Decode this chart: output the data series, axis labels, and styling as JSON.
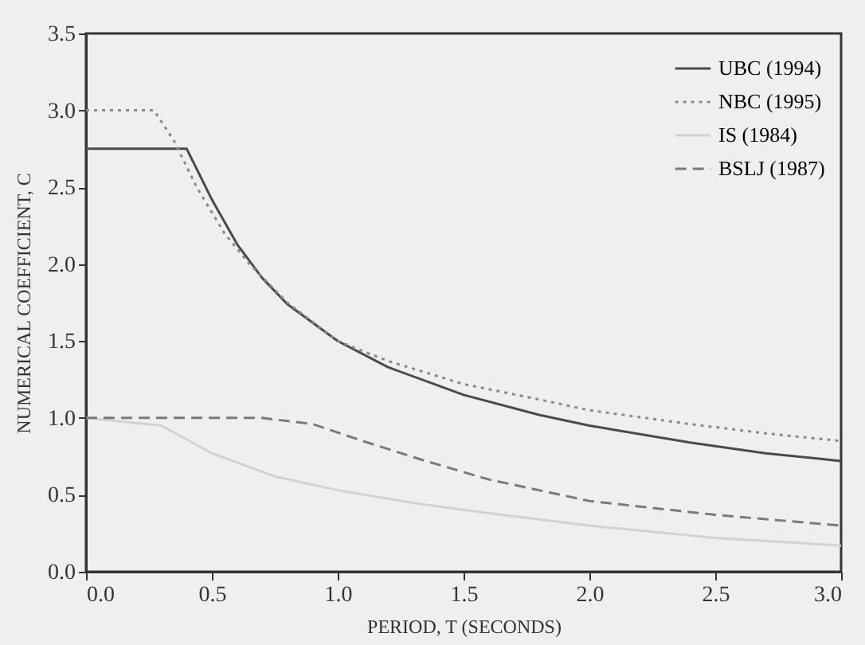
{
  "chart_data": {
    "type": "line",
    "xlabel": "PERIOD, T (SECONDS)",
    "ylabel": "NUMERICAL COEFFICIENT, C",
    "xlim": [
      0,
      3
    ],
    "ylim": [
      0,
      3.5
    ],
    "xticks": [
      {
        "value": 0,
        "label": "0.0"
      },
      0.5,
      {
        "value": 1,
        "label": "1.0"
      },
      1.5,
      {
        "value": 2,
        "label": "2.0"
      },
      2.5,
      {
        "value": 3,
        "label": "3.0"
      }
    ],
    "yticks": [
      {
        "value": 0,
        "label": "0.0"
      },
      0.5,
      {
        "value": 1,
        "label": "1.0"
      },
      1.5,
      {
        "value": 2,
        "label": "2.0"
      },
      2.5,
      {
        "value": 3,
        "label": "3.0"
      },
      3.5
    ],
    "grid": false,
    "legend": "top right",
    "marker": "none",
    "series": [
      {
        "name": "UBC (1994)",
        "color": "#4a4a4a",
        "line_style": "solid",
        "x": [
          0,
          0.4,
          0.5,
          0.6,
          0.7,
          0.8,
          1.0,
          1.2,
          1.5,
          1.8,
          2.0,
          2.4,
          2.7,
          3.0
        ],
        "values": [
          2.75,
          2.75,
          2.42,
          2.13,
          1.91,
          1.74,
          1.5,
          1.33,
          1.15,
          1.02,
          0.95,
          0.84,
          0.77,
          0.72
        ]
      },
      {
        "name": "NBC (1995)",
        "color": "#8a8a8a",
        "line_style": "dotted",
        "x": [
          0,
          0.27,
          0.35,
          0.44,
          0.55,
          0.65,
          0.8,
          1.0,
          1.2,
          1.5,
          1.8,
          2.0,
          2.4,
          2.7,
          3.0
        ],
        "values": [
          3.0,
          3.0,
          2.8,
          2.5,
          2.2,
          2.0,
          1.75,
          1.5,
          1.37,
          1.22,
          1.12,
          1.05,
          0.96,
          0.9,
          0.85
        ]
      },
      {
        "name": "IS (1984)",
        "color": "#d2d2d2",
        "line_style": "solid",
        "x": [
          0,
          0.3,
          0.5,
          0.75,
          1.0,
          1.33,
          1.6,
          2.0,
          2.5,
          3.0
        ],
        "values": [
          1.0,
          0.95,
          0.77,
          0.62,
          0.53,
          0.44,
          0.38,
          0.3,
          0.22,
          0.17
        ]
      },
      {
        "name": "BSLJ (1987)",
        "color": "#7a7a7a",
        "line_style": "dashed",
        "x": [
          0,
          0.7,
          0.9,
          1.1,
          1.33,
          1.6,
          2.0,
          2.5,
          3.0
        ],
        "values": [
          1.0,
          1.0,
          0.96,
          0.85,
          0.73,
          0.6,
          0.46,
          0.37,
          0.3
        ]
      }
    ]
  }
}
